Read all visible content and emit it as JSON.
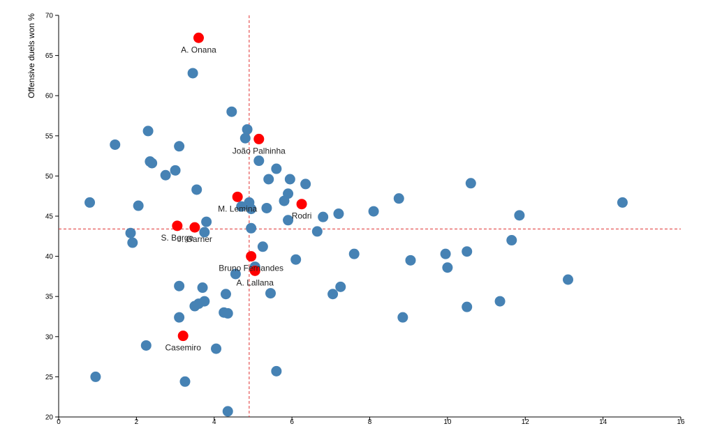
{
  "chart_data": {
    "type": "scatter",
    "title": "",
    "xlabel": "",
    "ylabel": "Offensive duels won %",
    "xlim": [
      0,
      16
    ],
    "ylim": [
      20,
      70
    ],
    "x_ticks": [
      0,
      2,
      4,
      6,
      8,
      10,
      12,
      14,
      16
    ],
    "y_ticks": [
      20,
      25,
      30,
      35,
      40,
      45,
      50,
      55,
      60,
      65,
      70
    ],
    "grid": false,
    "reference_lines": {
      "x": 4.9,
      "y": 43.4,
      "color": "#e03030",
      "style": "dashed"
    },
    "colors": {
      "default": "#4682b4",
      "highlight": "#ff0000"
    },
    "points": [
      {
        "x": 0.8,
        "y": 46.7
      },
      {
        "x": 0.95,
        "y": 25.0
      },
      {
        "x": 1.45,
        "y": 53.9
      },
      {
        "x": 1.85,
        "y": 42.9
      },
      {
        "x": 1.9,
        "y": 41.7
      },
      {
        "x": 2.05,
        "y": 46.3
      },
      {
        "x": 2.25,
        "y": 28.9
      },
      {
        "x": 2.3,
        "y": 55.6
      },
      {
        "x": 2.35,
        "y": 51.8
      },
      {
        "x": 2.4,
        "y": 51.6
      },
      {
        "x": 2.75,
        "y": 50.1
      },
      {
        "x": 3.0,
        "y": 50.7
      },
      {
        "x": 3.1,
        "y": 53.7
      },
      {
        "x": 3.1,
        "y": 36.3
      },
      {
        "x": 3.1,
        "y": 32.4
      },
      {
        "x": 3.25,
        "y": 24.4
      },
      {
        "x": 3.45,
        "y": 62.8
      },
      {
        "x": 3.5,
        "y": 33.8
      },
      {
        "x": 3.55,
        "y": 48.3
      },
      {
        "x": 3.6,
        "y": 34.1
      },
      {
        "x": 3.7,
        "y": 36.1
      },
      {
        "x": 3.75,
        "y": 34.4
      },
      {
        "x": 3.75,
        "y": 43.0
      },
      {
        "x": 3.8,
        "y": 44.3
      },
      {
        "x": 4.05,
        "y": 28.5
      },
      {
        "x": 4.25,
        "y": 33.0
      },
      {
        "x": 4.3,
        "y": 35.3
      },
      {
        "x": 4.35,
        "y": 32.9
      },
      {
        "x": 4.35,
        "y": 20.7
      },
      {
        "x": 4.45,
        "y": 58.0
      },
      {
        "x": 4.55,
        "y": 37.8
      },
      {
        "x": 4.7,
        "y": 46.2
      },
      {
        "x": 4.8,
        "y": 54.7
      },
      {
        "x": 4.85,
        "y": 55.8
      },
      {
        "x": 4.9,
        "y": 46.7
      },
      {
        "x": 4.95,
        "y": 45.9
      },
      {
        "x": 4.95,
        "y": 43.5
      },
      {
        "x": 5.05,
        "y": 38.7
      },
      {
        "x": 5.15,
        "y": 51.9
      },
      {
        "x": 5.25,
        "y": 41.2
      },
      {
        "x": 5.35,
        "y": 46.0
      },
      {
        "x": 5.4,
        "y": 49.6
      },
      {
        "x": 5.45,
        "y": 35.4
      },
      {
        "x": 5.6,
        "y": 50.9
      },
      {
        "x": 5.6,
        "y": 25.7
      },
      {
        "x": 5.8,
        "y": 46.9
      },
      {
        "x": 5.9,
        "y": 47.8
      },
      {
        "x": 5.9,
        "y": 44.5
      },
      {
        "x": 5.95,
        "y": 49.6
      },
      {
        "x": 6.1,
        "y": 39.6
      },
      {
        "x": 6.35,
        "y": 49.0
      },
      {
        "x": 6.65,
        "y": 43.1
      },
      {
        "x": 6.8,
        "y": 44.9
      },
      {
        "x": 7.05,
        "y": 35.3
      },
      {
        "x": 7.2,
        "y": 45.3
      },
      {
        "x": 7.25,
        "y": 36.2
      },
      {
        "x": 7.6,
        "y": 40.3
      },
      {
        "x": 8.1,
        "y": 45.6
      },
      {
        "x": 8.75,
        "y": 47.2
      },
      {
        "x": 8.85,
        "y": 32.4
      },
      {
        "x": 9.05,
        "y": 39.5
      },
      {
        "x": 9.95,
        "y": 40.3
      },
      {
        "x": 10.0,
        "y": 38.6
      },
      {
        "x": 10.5,
        "y": 40.6
      },
      {
        "x": 10.5,
        "y": 33.7
      },
      {
        "x": 10.6,
        "y": 49.1
      },
      {
        "x": 11.35,
        "y": 34.4
      },
      {
        "x": 11.65,
        "y": 42.0
      },
      {
        "x": 11.85,
        "y": 45.1
      },
      {
        "x": 13.1,
        "y": 37.1
      },
      {
        "x": 14.5,
        "y": 46.7
      }
    ],
    "highlighted": [
      {
        "name": "A. Onana",
        "x": 3.6,
        "y": 67.2,
        "label_pos": "below"
      },
      {
        "name": "João Palhinha",
        "x": 5.15,
        "y": 54.6,
        "label_pos": "below"
      },
      {
        "name": "M. Lemina",
        "x": 4.6,
        "y": 47.4,
        "label_pos": "below"
      },
      {
        "name": "Rodri",
        "x": 6.25,
        "y": 46.5,
        "label_pos": "below"
      },
      {
        "name": "S. Berge",
        "x": 3.05,
        "y": 43.8,
        "label_pos": "below"
      },
      {
        "name": "J. Garner",
        "x": 3.5,
        "y": 43.6,
        "label_pos": "below"
      },
      {
        "name": "Bruno Fernandes",
        "x": 4.95,
        "y": 40.0,
        "label_pos": "below"
      },
      {
        "name": "A. Lallana",
        "x": 5.05,
        "y": 38.2,
        "label_pos": "below"
      },
      {
        "name": "Casemiro",
        "x": 3.2,
        "y": 30.1,
        "label_pos": "below"
      }
    ]
  }
}
